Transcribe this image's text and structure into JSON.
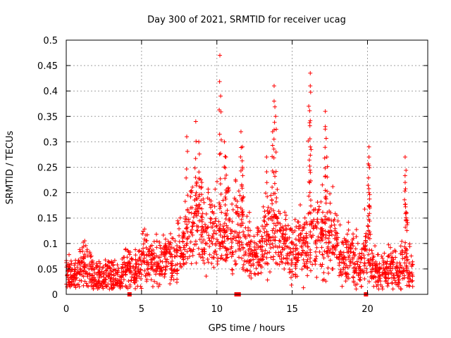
{
  "chart_data": {
    "type": "scatter",
    "title": "Day 300 of 2021, SRMTID for receiver ucag",
    "xlabel": "GPS time / hours",
    "ylabel": "SRMTID / TECUs",
    "xlim": [
      0,
      24
    ],
    "ylim": [
      0,
      0.5
    ],
    "x_ticks": [
      0,
      5,
      10,
      15,
      20
    ],
    "x_tick_labels": [
      "0",
      "5",
      "10",
      "15",
      "20"
    ],
    "y_ticks": [
      0,
      0.05,
      0.1,
      0.15,
      0.2,
      0.25,
      0.3,
      0.35,
      0.4,
      0.45,
      0.5
    ],
    "y_tick_labels": [
      "0",
      "0.05",
      "0.1",
      "0.15",
      "0.2",
      "0.25",
      "0.3",
      "0.35",
      "0.4",
      "0.45",
      "0.5"
    ],
    "grid": true,
    "marker": "plus",
    "colors": {
      "series": "#ff0000",
      "grid": "#a0a0a0",
      "axis": "#000000"
    },
    "series": [
      {
        "name": "SRMTID",
        "cluster_centers": [
          {
            "x": 0.1,
            "y": 0.04
          },
          {
            "x": 0.4,
            "y": 0.035
          },
          {
            "x": 0.8,
            "y": 0.05
          },
          {
            "x": 1.2,
            "y": 0.06
          },
          {
            "x": 1.6,
            "y": 0.045
          },
          {
            "x": 2.0,
            "y": 0.035
          },
          {
            "x": 2.4,
            "y": 0.03
          },
          {
            "x": 2.8,
            "y": 0.04
          },
          {
            "x": 3.2,
            "y": 0.035
          },
          {
            "x": 3.6,
            "y": 0.04
          },
          {
            "x": 4.0,
            "y": 0.05
          },
          {
            "x": 4.4,
            "y": 0.045
          },
          {
            "x": 4.8,
            "y": 0.055
          },
          {
            "x": 5.2,
            "y": 0.075
          },
          {
            "x": 5.6,
            "y": 0.065
          },
          {
            "x": 6.0,
            "y": 0.06
          },
          {
            "x": 6.4,
            "y": 0.07
          },
          {
            "x": 6.8,
            "y": 0.065
          },
          {
            "x": 7.2,
            "y": 0.06
          },
          {
            "x": 7.6,
            "y": 0.09
          },
          {
            "x": 8.0,
            "y": 0.11
          },
          {
            "x": 8.4,
            "y": 0.14
          },
          {
            "x": 8.8,
            "y": 0.15
          },
          {
            "x": 9.2,
            "y": 0.11
          },
          {
            "x": 9.6,
            "y": 0.13
          },
          {
            "x": 10.0,
            "y": 0.12
          },
          {
            "x": 10.4,
            "y": 0.1
          },
          {
            "x": 10.8,
            "y": 0.14
          },
          {
            "x": 11.2,
            "y": 0.13
          },
          {
            "x": 11.6,
            "y": 0.12
          },
          {
            "x": 12.0,
            "y": 0.1
          },
          {
            "x": 12.4,
            "y": 0.08
          },
          {
            "x": 12.8,
            "y": 0.09
          },
          {
            "x": 13.2,
            "y": 0.1
          },
          {
            "x": 13.6,
            "y": 0.12
          },
          {
            "x": 14.0,
            "y": 0.12
          },
          {
            "x": 14.4,
            "y": 0.11
          },
          {
            "x": 14.8,
            "y": 0.09
          },
          {
            "x": 15.2,
            "y": 0.08
          },
          {
            "x": 15.6,
            "y": 0.1
          },
          {
            "x": 16.0,
            "y": 0.1
          },
          {
            "x": 16.4,
            "y": 0.11
          },
          {
            "x": 16.8,
            "y": 0.12
          },
          {
            "x": 17.2,
            "y": 0.1
          },
          {
            "x": 17.6,
            "y": 0.12
          },
          {
            "x": 18.0,
            "y": 0.09
          },
          {
            "x": 18.4,
            "y": 0.07
          },
          {
            "x": 18.8,
            "y": 0.08
          },
          {
            "x": 19.2,
            "y": 0.07
          },
          {
            "x": 19.6,
            "y": 0.06
          },
          {
            "x": 20.0,
            "y": 0.09
          },
          {
            "x": 20.4,
            "y": 0.05
          },
          {
            "x": 20.8,
            "y": 0.045
          },
          {
            "x": 21.2,
            "y": 0.045
          },
          {
            "x": 21.6,
            "y": 0.05
          },
          {
            "x": 22.0,
            "y": 0.04
          },
          {
            "x": 22.4,
            "y": 0.06
          },
          {
            "x": 22.8,
            "y": 0.05
          }
        ],
        "spikes": [
          {
            "x": 8.6,
            "y": 0.34
          },
          {
            "x": 8.8,
            "y": 0.3
          },
          {
            "x": 8.0,
            "y": 0.31
          },
          {
            "x": 9.0,
            "y": 0.22
          },
          {
            "x": 10.2,
            "y": 0.47
          },
          {
            "x": 10.25,
            "y": 0.39
          },
          {
            "x": 10.5,
            "y": 0.3
          },
          {
            "x": 10.6,
            "y": 0.27
          },
          {
            "x": 11.6,
            "y": 0.32
          },
          {
            "x": 11.7,
            "y": 0.29
          },
          {
            "x": 11.7,
            "y": 0.25
          },
          {
            "x": 13.8,
            "y": 0.41
          },
          {
            "x": 13.8,
            "y": 0.38
          },
          {
            "x": 13.9,
            "y": 0.35
          },
          {
            "x": 13.7,
            "y": 0.32
          },
          {
            "x": 13.3,
            "y": 0.27
          },
          {
            "x": 16.2,
            "y": 0.435
          },
          {
            "x": 16.2,
            "y": 0.41
          },
          {
            "x": 16.1,
            "y": 0.37
          },
          {
            "x": 16.2,
            "y": 0.29
          },
          {
            "x": 17.2,
            "y": 0.36
          },
          {
            "x": 17.2,
            "y": 0.33
          },
          {
            "x": 17.3,
            "y": 0.27
          },
          {
            "x": 20.1,
            "y": 0.29
          },
          {
            "x": 20.1,
            "y": 0.27
          },
          {
            "x": 20.1,
            "y": 0.2
          },
          {
            "x": 22.5,
            "y": 0.27
          },
          {
            "x": 22.5,
            "y": 0.22
          },
          {
            "x": 22.6,
            "y": 0.16
          }
        ],
        "zero_markers": [
          {
            "x": 4.2
          },
          {
            "x": 11.3
          },
          {
            "x": 11.45
          },
          {
            "x": 19.9
          }
        ]
      }
    ]
  }
}
